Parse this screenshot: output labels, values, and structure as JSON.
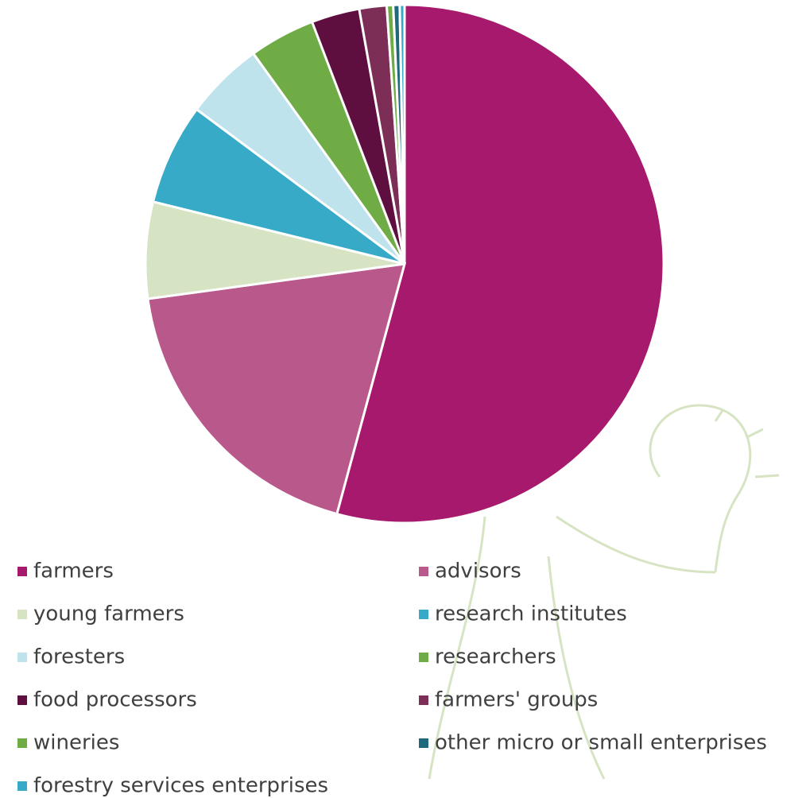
{
  "chart_data": {
    "type": "pie",
    "categories": [
      "farmers",
      "advisors",
      "young farmers",
      "research institutes",
      "foresters",
      "researchers",
      "food processors",
      "farmers' groups",
      "wineries",
      "other micro or small enterprises",
      "forestry services enterprises"
    ],
    "values": [
      54.1,
      18.6,
      6.0,
      6.3,
      4.9,
      4.1,
      3.0,
      1.7,
      0.4,
      0.4,
      0.3
    ],
    "colors": [
      "#a6196c",
      "#b8588b",
      "#d7e4c4",
      "#36aac7",
      "#bee3ec",
      "#6fac46",
      "#5e0f3f",
      "#7c2e57",
      "#6fac46",
      "#1e6a7c",
      "#36aac7"
    ],
    "legend": "bottom"
  }
}
